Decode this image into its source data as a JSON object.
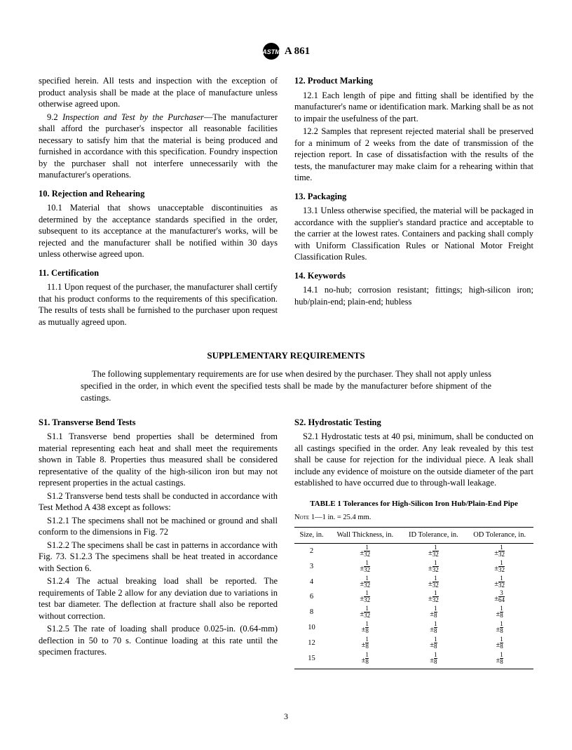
{
  "header": {
    "designation": "A 861"
  },
  "leftColTop": {
    "lead_in": "specified herein. All tests and inspection with the exception of product analysis shall be made at the place of manufacture unless otherwise agreed upon.",
    "p92_label": "9.2",
    "p92_title": " Inspection and Test by the Purchaser",
    "p92_body": "—The manufacturer shall afford the purchaser's inspector all reasonable facilities necessary to satisfy him that the material is being produced and furnished in accordance with this specification. Foundry inspection by the purchaser shall not interfere unnecessarily with the manufacturer's operations.",
    "s10_heading": "10.  Rejection and Rehearing",
    "p101": "10.1  Material that shows unacceptable discontinuities as determined by the acceptance standards specified in the order, subsequent to its acceptance at the manufacturer's works, will be rejected and the manufacturer shall be notified within 30 days unless otherwise agreed upon.",
    "s11_heading": "11.  Certification",
    "p111": "11.1  Upon request of the purchaser, the manufacturer shall certify that his product conforms to the requirements of this specification. The results of tests shall be furnished to the purchaser upon request as mutually agreed upon."
  },
  "rightColTop": {
    "s12_heading": "12.  Product Marking",
    "p121": "12.1  Each length of pipe and fitting shall be identified by the manufacturer's name or identification mark. Marking shall be as not to impair the usefulness of the part.",
    "p122": "12.2  Samples that represent rejected material shall be preserved for a minimum of 2 weeks from the date of transmission of the rejection report. In case of dissatisfaction with the results of the tests, the manufacturer may make claim for a rehearing within that time.",
    "s13_heading": "13.  Packaging",
    "p131": "13.1  Unless otherwise specified, the material will be packaged in accordance with the supplier's standard practice and acceptable to the carrier at the lowest rates. Containers and packing shall comply with Uniform Classification Rules or National Motor Freight Classification Rules.",
    "s14_heading": "14.  Keywords",
    "p141": "14.1  no-hub; corrosion resistant; fittings; high-silicon iron; hub/plain-end; plain-end; hubless"
  },
  "supp": {
    "title": "SUPPLEMENTARY REQUIREMENTS",
    "intro": "The following supplementary requirements are for use when desired by the purchaser. They shall not apply unless specified in the order, in which event the specified tests shall be made by the manufacturer before shipment of the castings."
  },
  "leftColBot": {
    "s1_heading": "S1. Transverse Bend Tests",
    "p11": "S1.1  Transverse bend properties shall be determined from material representing each heat and shall meet the requirements shown in Table 8. Properties thus measured shall be considered representative of the quality of the high-silicon iron but may not represent properties in the actual castings.",
    "p12": "S1.2  Transverse bend tests shall be conducted in accordance with Test Method A 438 except as follows:",
    "p121": "S1.2.1  The specimens shall not be machined or ground and shall conform to the dimensions in Fig. 72",
    "p122": "S1.2.2  The specimens shall be cast in patterns in accordance with Fig. 73. S1.2.3 The specimens shall be heat treated in accordance with Section 6.",
    "p124": "S1.2.4 The actual breaking load shall be reported. The requirements of Table 2 allow for any deviation due to variations in test bar diameter. The deflection at fracture shall also be reported without correction.",
    "p125": "S1.2.5 The rate of loading shall produce 0.025-in. (0.64-mm) deflection in 50 to 70 s. Continue loading at this rate until the specimen fractures."
  },
  "rightColBot": {
    "s2_heading": "S2. Hydrostatic Testing",
    "p21": "S2.1  Hydrostatic tests at 40 psi, minimum, shall be conducted on all castings specified in the order. Any leak revealed by this test shall be cause for rejection for the individual piece. A leak shall include any evidence of moisture on the outside diameter of the part established to have occurred due to through-wall leakage.",
    "table_title": "TABLE 1   Tolerances for High-Silicon Iron Hub/Plain-End Pipe",
    "note_label": "Note",
    "note_text": " 1—1 in. = 25.4 mm.",
    "columns": [
      "Size, in.",
      "Wall Thickness, in.",
      "ID Tolerance, in.",
      "OD Tolerance, in."
    ],
    "rows": [
      {
        "size": "2",
        "wall": {
          "n": "1",
          "d": "32"
        },
        "id": {
          "n": "1",
          "d": "32"
        },
        "od": {
          "n": "1",
          "d": "32"
        }
      },
      {
        "size": "3",
        "wall": {
          "n": "1",
          "d": "32"
        },
        "id": {
          "n": "1",
          "d": "32"
        },
        "od": {
          "n": "1",
          "d": "32"
        }
      },
      {
        "size": "4",
        "wall": {
          "n": "1",
          "d": "32"
        },
        "id": {
          "n": "1",
          "d": "32"
        },
        "od": {
          "n": "1",
          "d": "32"
        }
      },
      {
        "size": "6",
        "wall": {
          "n": "1",
          "d": "32"
        },
        "id": {
          "n": "1",
          "d": "32"
        },
        "od": {
          "n": "3",
          "d": "64"
        }
      },
      {
        "size": "8",
        "wall": {
          "n": "1",
          "d": "32"
        },
        "id": {
          "n": "1",
          "d": "8"
        },
        "od": {
          "n": "1",
          "d": "8"
        }
      },
      {
        "size": "10",
        "wall": {
          "n": "1",
          "d": "8"
        },
        "id": {
          "n": "1",
          "d": "8"
        },
        "od": {
          "n": "1",
          "d": "8"
        }
      },
      {
        "size": "12",
        "wall": {
          "n": "1",
          "d": "8"
        },
        "id": {
          "n": "1",
          "d": "8"
        },
        "od": {
          "n": "1",
          "d": "8"
        }
      },
      {
        "size": "15",
        "wall": {
          "n": "1",
          "d": "8"
        },
        "id": {
          "n": "1",
          "d": "8"
        },
        "od": {
          "n": "1",
          "d": "8"
        }
      }
    ]
  },
  "page_number": "3"
}
